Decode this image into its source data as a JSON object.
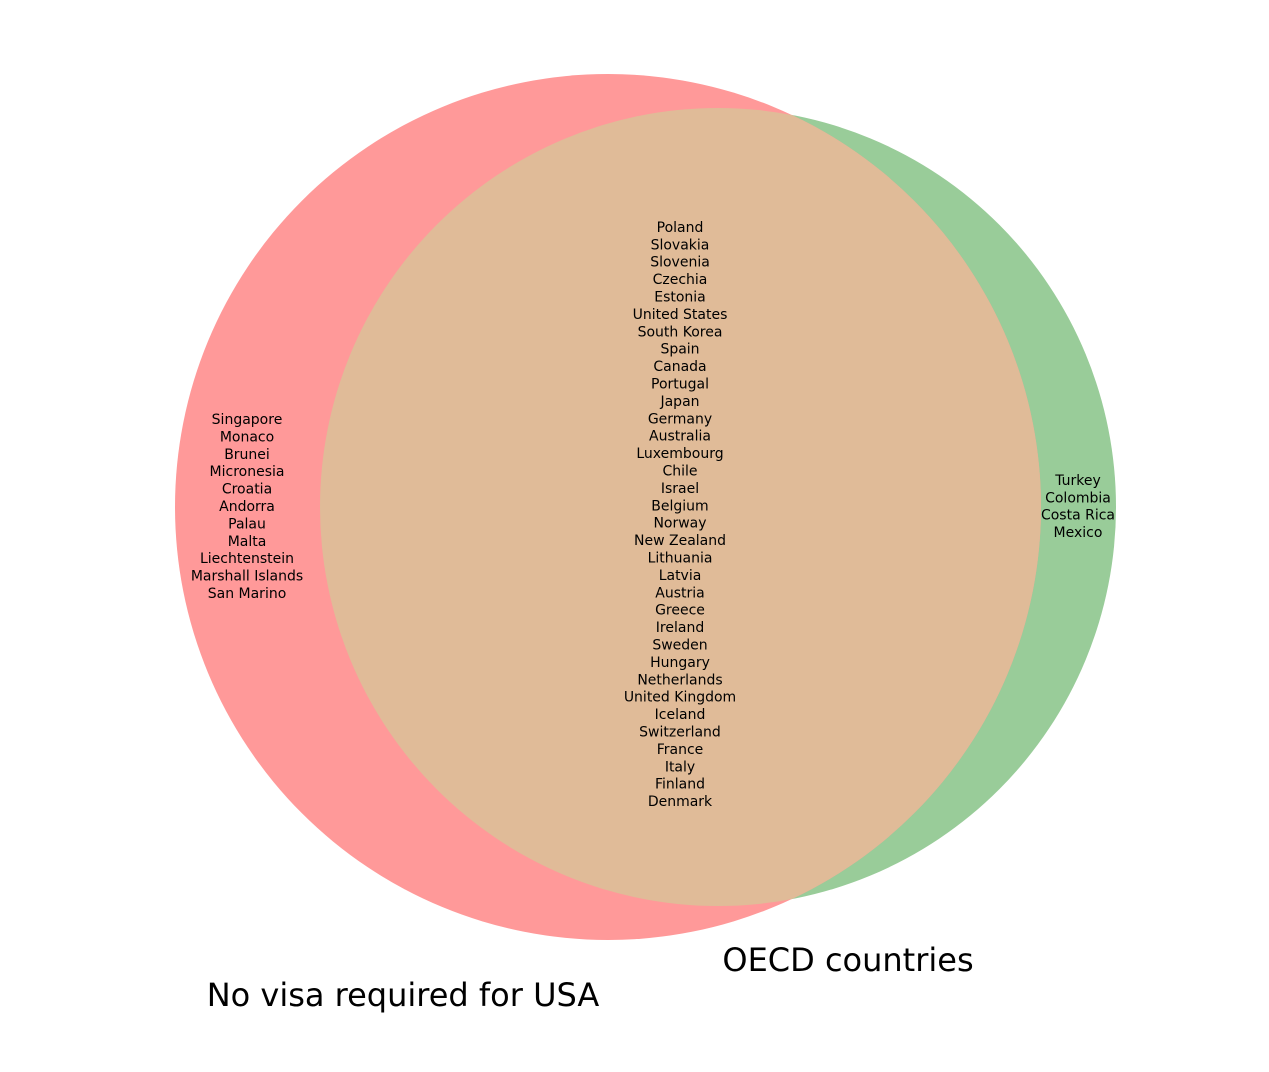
{
  "sets": [
    {
      "label": "No visa required for USA",
      "only": [
        "Singapore",
        "Monaco",
        "Brunei",
        "Micronesia",
        "Croatia",
        "Andorra",
        "Palau",
        "Malta",
        "Liechtenstein",
        "Marshall Islands",
        "San Marino"
      ]
    },
    {
      "label": "OECD countries",
      "only": [
        "Turkey",
        "Colombia",
        "Costa Rica",
        "Mexico"
      ]
    }
  ],
  "both": [
    "Poland",
    "Slovakia",
    "Slovenia",
    "Czechia",
    "Estonia",
    "United States",
    "South Korea",
    "Spain",
    "Canada",
    "Portugal",
    "Japan",
    "Germany",
    "Australia",
    "Luxembourg",
    "Chile",
    "Israel",
    "Belgium",
    "Norway",
    "New Zealand",
    "Lithuania",
    "Latvia",
    "Austria",
    "Greece",
    "Ireland",
    "Sweden",
    "Hungary",
    "Netherlands",
    "United Kingdom",
    "Iceland",
    "Switzerland",
    "France",
    "Italy",
    "Finland",
    "Denmark"
  ]
}
